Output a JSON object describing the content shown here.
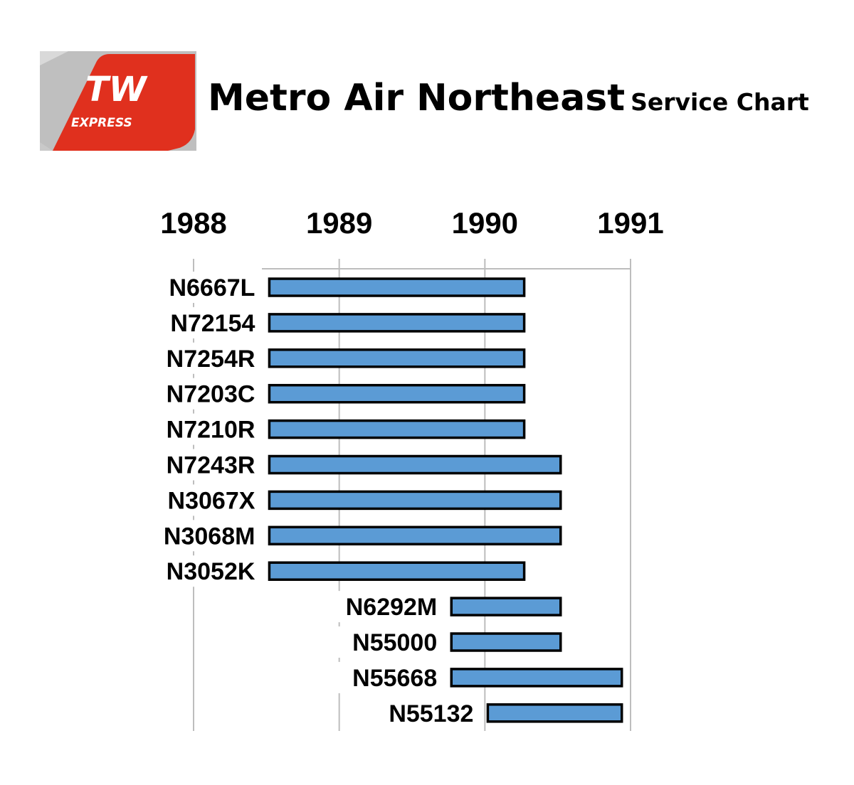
{
  "header": {
    "logo_text": "TW",
    "logo_subtext": "EXPRESS",
    "title_main": "Metro Air Northeast",
    "title_sub": "Service Chart"
  },
  "colors": {
    "bar_fill": "#5b9bd5",
    "bar_stroke": "#000000",
    "logo_red": "#e0301e"
  },
  "chart_data": {
    "type": "bar",
    "orientation": "horizontal-gantt",
    "title": "",
    "xlabel": "",
    "ylabel": "",
    "x_ticks": [
      1988,
      1989,
      1990,
      1991
    ],
    "xlim": [
      1988,
      1991
    ],
    "grid": true,
    "bars": [
      {
        "label": "N6667L",
        "start": 1988.52,
        "end": 1990.27
      },
      {
        "label": "N72154",
        "start": 1988.52,
        "end": 1990.27
      },
      {
        "label": "N7254R",
        "start": 1988.52,
        "end": 1990.27
      },
      {
        "label": "N7203C",
        "start": 1988.52,
        "end": 1990.27
      },
      {
        "label": "N7210R",
        "start": 1988.52,
        "end": 1990.27
      },
      {
        "label": "N7243R",
        "start": 1988.52,
        "end": 1990.52
      },
      {
        "label": "N3067X",
        "start": 1988.52,
        "end": 1990.52
      },
      {
        "label": "N3068M",
        "start": 1988.52,
        "end": 1990.52
      },
      {
        "label": "N3052K",
        "start": 1988.52,
        "end": 1990.27
      },
      {
        "label": "N6292M",
        "start": 1989.77,
        "end": 1990.52
      },
      {
        "label": "N55000",
        "start": 1989.77,
        "end": 1990.52
      },
      {
        "label": "N55668",
        "start": 1989.77,
        "end": 1990.94
      },
      {
        "label": "N55132",
        "start": 1990.02,
        "end": 1990.94
      }
    ]
  }
}
